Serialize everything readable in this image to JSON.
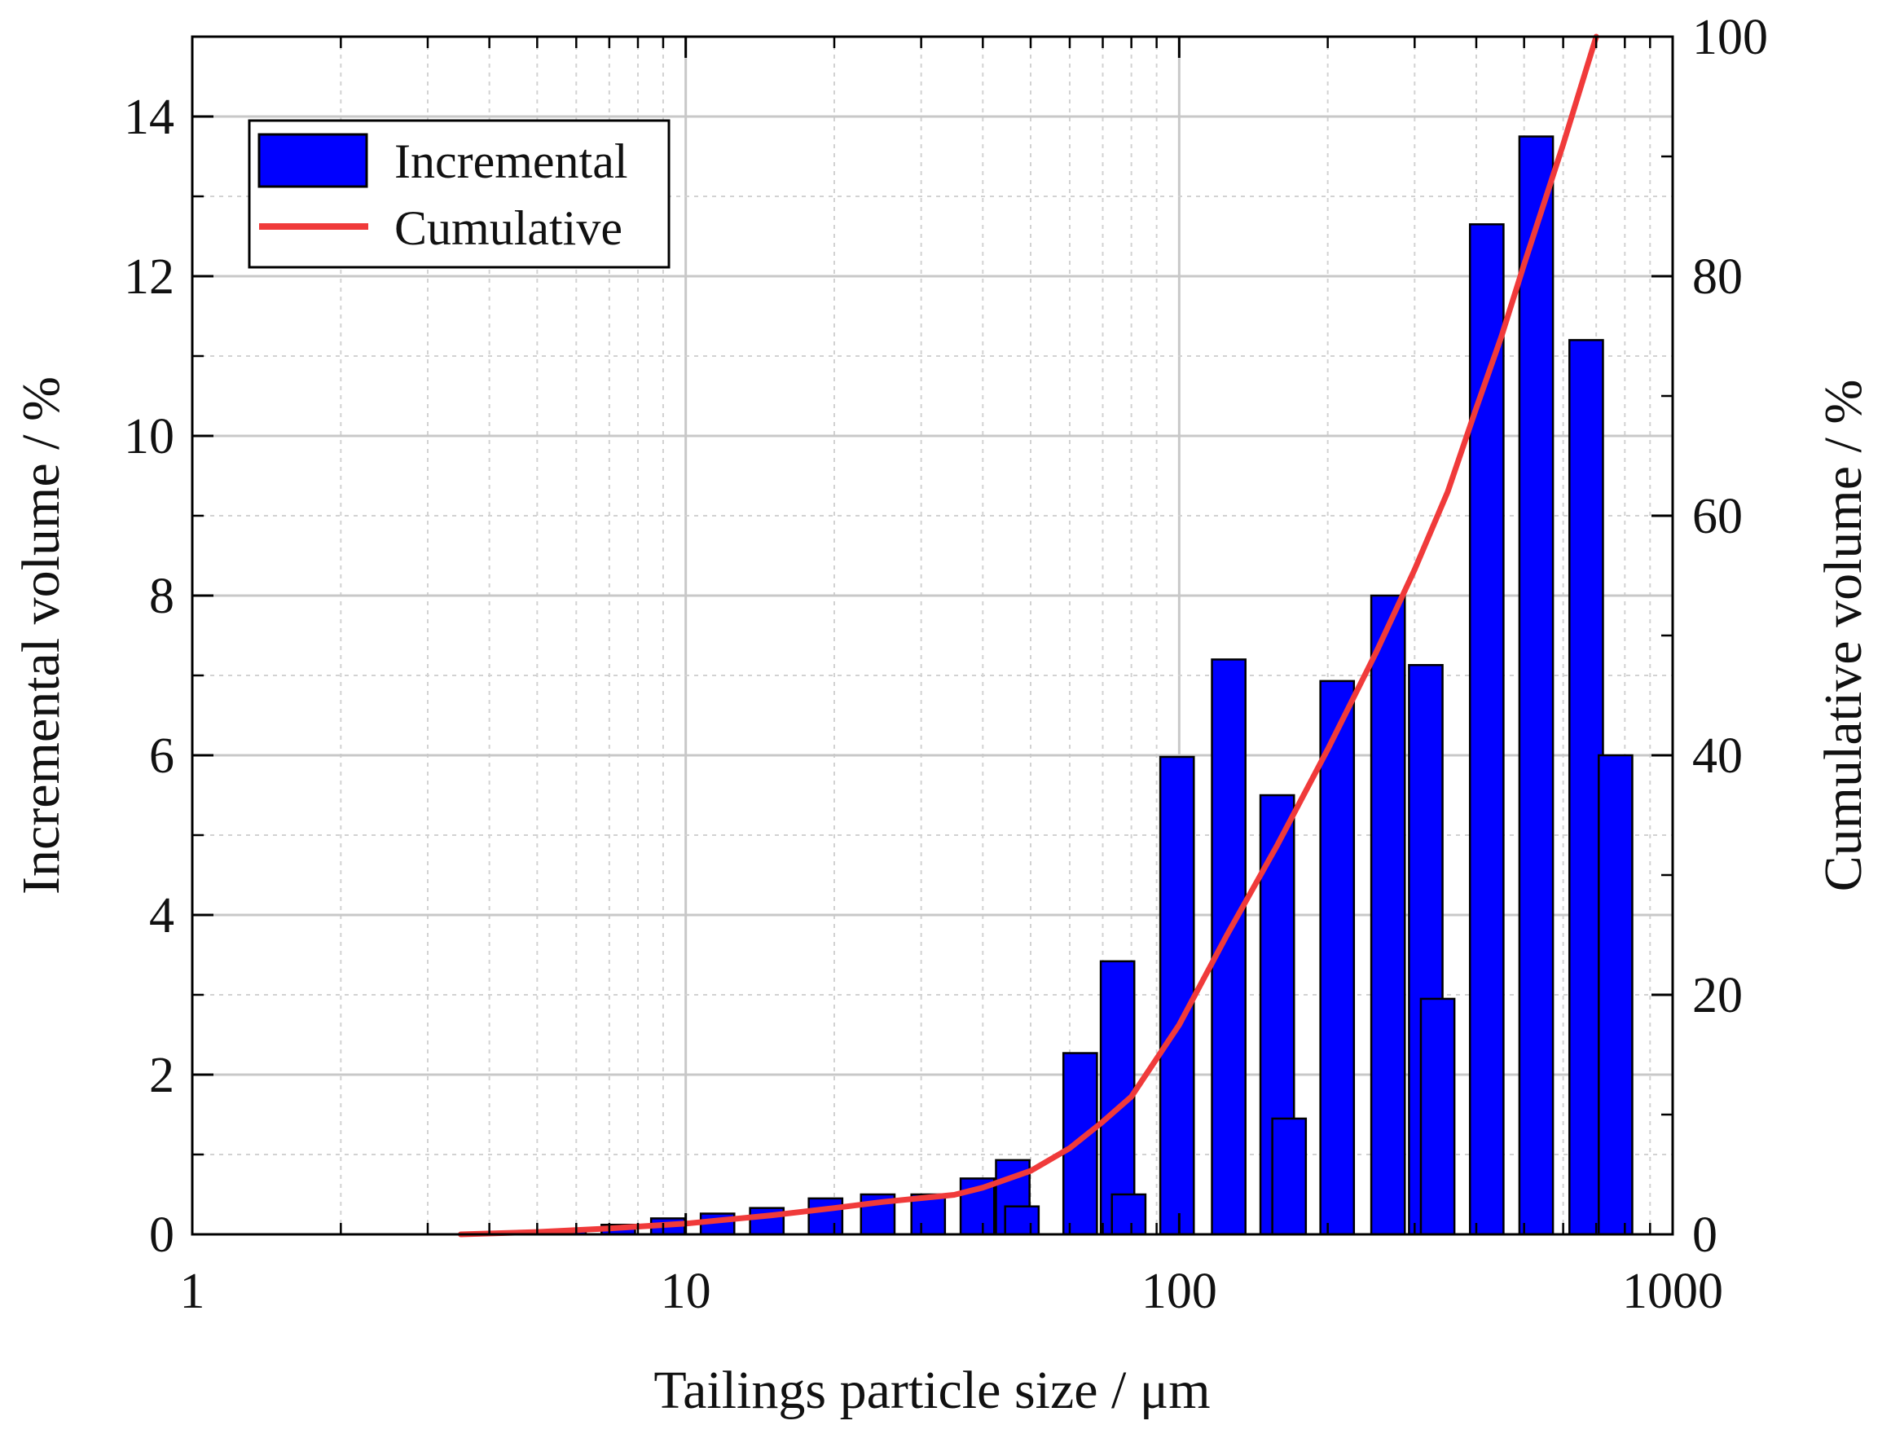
{
  "chart_data": {
    "type": "bar",
    "x_scale": "log",
    "xlabel": "Tailings particle size / μm",
    "ylabel_left": "Incremental volume / %",
    "ylabel_right": "Cumulative volume  / %",
    "xlim": [
      1,
      1000
    ],
    "ylim_left": [
      0,
      15
    ],
    "ylim_right": [
      0,
      100
    ],
    "x_ticks": [
      1,
      10,
      100,
      1000
    ],
    "x_tick_labels": [
      "1",
      "10",
      "100",
      "1000"
    ],
    "y_left_ticks": [
      0,
      2,
      4,
      6,
      8,
      10,
      12,
      14
    ],
    "y_left_tick_labels": [
      "0",
      "2",
      "4",
      "6",
      "8",
      "10",
      "12",
      "14"
    ],
    "y_right_ticks": [
      0,
      20,
      40,
      60,
      80,
      100
    ],
    "y_right_tick_labels": [
      "0",
      "20",
      "40",
      "60",
      "80",
      "100"
    ],
    "grid": true,
    "legend": {
      "position": "top-left",
      "entries": [
        {
          "label": "Incremental",
          "kind": "bar"
        },
        {
          "label": "Cumulative",
          "kind": "line"
        }
      ]
    },
    "colors": {
      "bar_fill": "#0000ff",
      "bar_edge": "#000000",
      "line": "#f03a3a",
      "grid_major": "#c8c8c8",
      "grid_minor": "#d2d2d2"
    },
    "series": [
      {
        "name": "Incremental",
        "axis": "left",
        "kind": "bar",
        "x": [
          5.8,
          7.3,
          9.2,
          11.6,
          14.6,
          19.2,
          24.5,
          31,
          39,
          46,
          48,
          63,
          75,
          79,
          99,
          126,
          158,
          167,
          209,
          265,
          316,
          334,
          420,
          529,
          668,
          766
        ],
        "values": [
          0.05,
          0.12,
          0.2,
          0.26,
          0.33,
          0.45,
          0.5,
          0.5,
          0.7,
          0.93,
          0.35,
          2.27,
          3.42,
          0.5,
          5.98,
          7.2,
          5.5,
          1.45,
          6.93,
          8.0,
          7.13,
          2.95,
          12.65,
          13.75,
          11.2,
          6.0
        ]
      },
      {
        "name": "Cumulative",
        "axis": "right",
        "kind": "line",
        "x": [
          3.5,
          5,
          7,
          10,
          15,
          20,
          25,
          35,
          40,
          50,
          60,
          70,
          80,
          100,
          125,
          158,
          200,
          250,
          300,
          350,
          400,
          450,
          500,
          600,
          700
        ],
        "values": [
          0,
          0.2,
          0.5,
          0.9,
          1.6,
          2.2,
          2.7,
          3.3,
          3.9,
          5.3,
          7.2,
          9.4,
          11.5,
          17.5,
          25,
          32.5,
          40.5,
          48.5,
          55.5,
          62,
          69,
          75,
          81,
          91,
          100
        ]
      }
    ]
  }
}
